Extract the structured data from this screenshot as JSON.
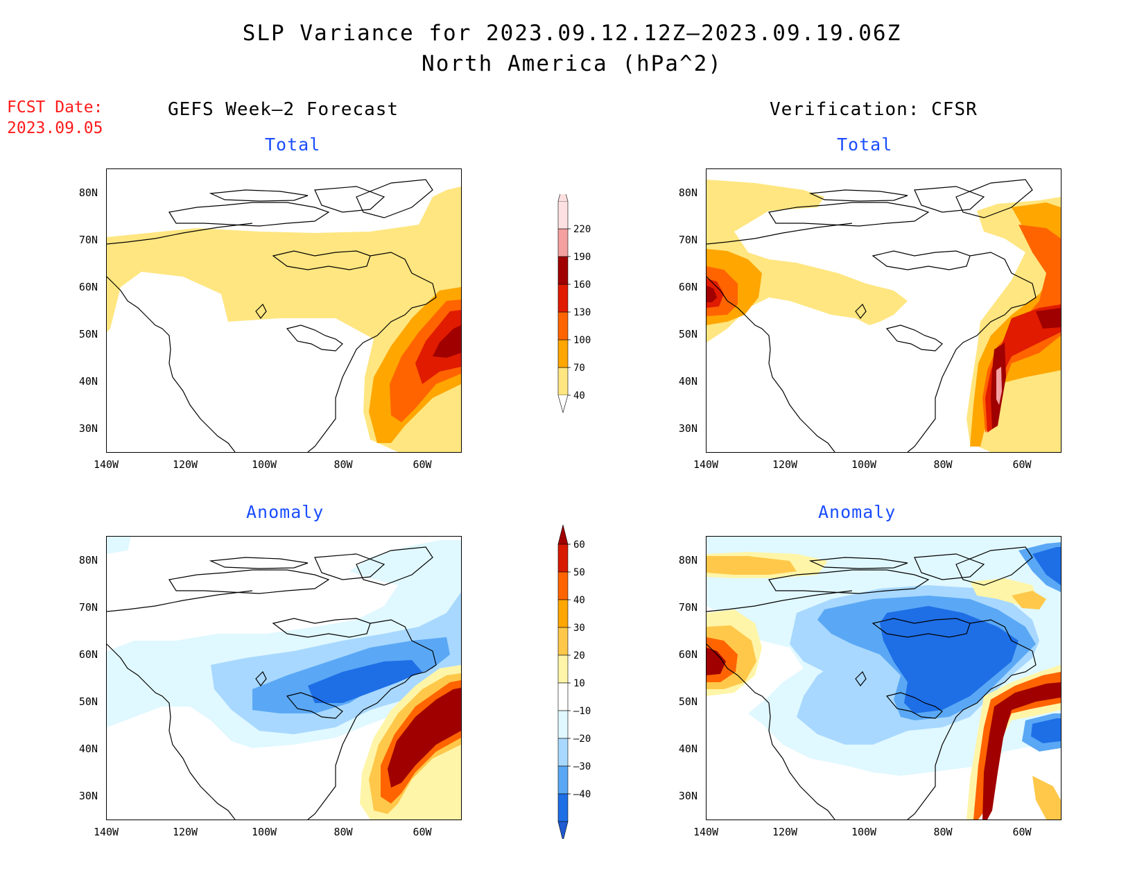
{
  "title": {
    "line1": "SLP Variance for 2023.09.12.12Z–2023.09.19.06Z",
    "line2": "North America (hPa^2)"
  },
  "fcst_date": {
    "label": "FCST Date:",
    "value": "2023.09.05"
  },
  "columns": {
    "left": "GEFS Week–2 Forecast",
    "right": "Verification: CFSR"
  },
  "panels": {
    "top_left": "Total",
    "top_right": "Total",
    "bottom_left": "Anomaly",
    "bottom_right": "Anomaly"
  },
  "axes": {
    "lat_labels": [
      "80N",
      "70N",
      "60N",
      "50N",
      "40N",
      "30N"
    ],
    "lon_labels": [
      "140W",
      "120W",
      "100W",
      "80W",
      "60W"
    ]
  },
  "colorbar_total": {
    "levels": [
      "40",
      "70",
      "100",
      "130",
      "160",
      "190",
      "220"
    ],
    "colors": [
      "#ffe680",
      "#ffa600",
      "#ff6400",
      "#e01b00",
      "#a00000",
      "#f4a0a0",
      "#fde0e0"
    ]
  },
  "colorbar_anomaly": {
    "levels": [
      "60",
      "50",
      "40",
      "30",
      "20",
      "10",
      "–10",
      "–20",
      "–30",
      "–40"
    ],
    "colors_top_down": [
      "#a00000",
      "#d81a00",
      "#ff6400",
      "#ffa600",
      "#ffc84a",
      "#fff5a8",
      "#ffffff",
      "#e0f8ff",
      "#a8d8ff",
      "#5aa8f5",
      "#1e6ee6",
      "#1e5ad2"
    ]
  },
  "palette": {
    "yellow": "#ffe680",
    "orange": "#ffa600",
    "dark_orange": "#ff6400",
    "red": "#e01b00",
    "dark_red": "#a00000",
    "pink": "#f4a0a0",
    "light_blue": "#e0f8ff",
    "mid_blue": "#a8d8ff",
    "blue": "#5aa8f5",
    "dark_blue": "#1e6ee6"
  }
}
